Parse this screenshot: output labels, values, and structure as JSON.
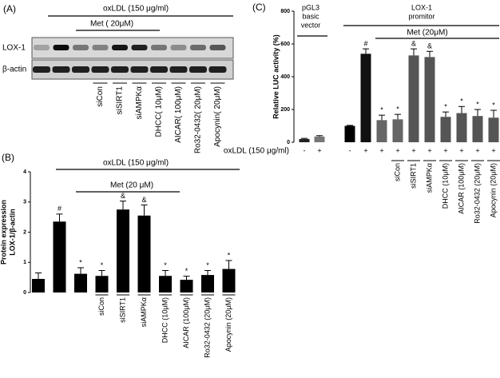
{
  "panel_a": {
    "label": "(A)",
    "group1": "oxLDL (150 μg/ml)",
    "group2": "Met ( 20μM)",
    "rows": [
      "LOX-1",
      "β-actin"
    ],
    "lanes": [
      "siCon",
      "siSIRT1",
      "siAMPKα",
      "DHCC( 10μM)",
      "AICAR( 100μM)",
      "Ro32-0432( 20μM)",
      "Apocynin( 20μM)"
    ]
  },
  "chart_data": [
    {
      "type": "bar",
      "label": "(B)",
      "ylabel": [
        "Protein expression",
        "LOX-1/β-actin"
      ],
      "annotations": [
        "oxLDL (150 μg/ml)",
        "Met (20 μM)"
      ],
      "categories": [
        null,
        null,
        null,
        "siCon",
        "siSIRT1",
        "siAMPKα",
        "DHCC (10μM)",
        "AICAR (100μM)",
        "Ro32-0432 (20μM)",
        "Apocynin (20μM)"
      ],
      "values": [
        0.45,
        2.35,
        0.62,
        0.55,
        2.75,
        2.55,
        0.55,
        0.42,
        0.58,
        0.78
      ],
      "errors": [
        0.2,
        0.25,
        0.2,
        0.18,
        0.28,
        0.35,
        0.18,
        0.12,
        0.15,
        0.28
      ],
      "markers": [
        null,
        "#",
        "*",
        "*",
        "&",
        "&",
        "*",
        "*",
        "*",
        "*"
      ],
      "color": "#000000",
      "ylim": [
        0,
        4
      ],
      "yticks": [
        0,
        1,
        2,
        3,
        4
      ]
    },
    {
      "type": "bar",
      "label": "(C)",
      "ylabel": [
        "Relative LUC activity (%)"
      ],
      "annotations": [
        [
          "pGL3",
          "basic",
          "vector"
        ],
        [
          "LOX-1",
          "promitor"
        ],
        "Met (20μM)"
      ],
      "row_label": "oxLDL (150 μg/ml)",
      "row_signs": [
        "-",
        "+",
        "-",
        "+",
        "+",
        "+",
        "+",
        "+",
        "+",
        "+",
        "+",
        "+"
      ],
      "categories": [
        null,
        null,
        null,
        null,
        null,
        "siCon",
        "siSIRT1",
        "siAMPKα",
        "DHCC (10μM)",
        "AICAR (100μM)",
        "Ro32-0432 (20μM)",
        "Apocynin (20μM)"
      ],
      "values": [
        20,
        35,
        100,
        540,
        135,
        140,
        530,
        520,
        155,
        178,
        160,
        150
      ],
      "errors": [
        4,
        5,
        3,
        30,
        30,
        30,
        40,
        35,
        30,
        40,
        40,
        45
      ],
      "markers": [
        null,
        null,
        null,
        "#",
        "*",
        "*",
        "&",
        "&",
        "*",
        "*",
        "*",
        "*"
      ],
      "colors": [
        "#222222",
        "#777777",
        "#000000",
        "#111111",
        "#666666",
        "#666666",
        "#555555",
        "#555555",
        "#555555",
        "#555555",
        "#555555",
        "#555555"
      ],
      "ylim": [
        0,
        800
      ],
      "yticks": [
        0,
        200,
        400,
        600,
        800
      ]
    }
  ]
}
